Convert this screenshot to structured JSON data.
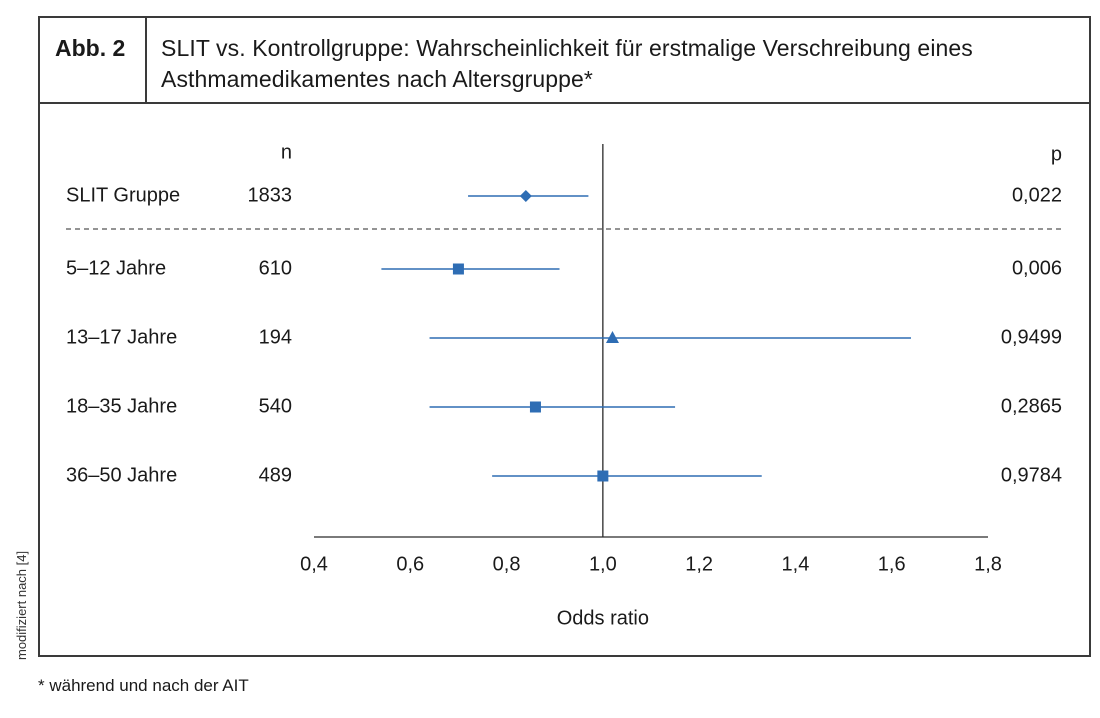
{
  "figure": {
    "label": "Abb. 2",
    "title": "SLIT vs. Kontrollgruppe: Wahrscheinlichkeit für erstmalige Verschreibung eines Asthmamedikamentes nach Altersgruppe*",
    "side_note": "modifiziert nach [4]",
    "footnote": "* während und nach der AIT"
  },
  "chart_data": {
    "type": "scatter",
    "subtype": "forest-plot",
    "xlabel": "Odds ratio",
    "xlim": [
      0.4,
      1.8
    ],
    "xticks": [
      0.4,
      0.6,
      0.8,
      1.0,
      1.2,
      1.4,
      1.6,
      1.8
    ],
    "xtick_labels": [
      "0,4",
      "0,6",
      "0,8",
      "1,0",
      "1,2",
      "1,4",
      "1,6",
      "1,8"
    ],
    "reference_line": 1.0,
    "column_headers": {
      "n": "n",
      "p": "p"
    },
    "accent_color": "#2e6db4",
    "rows": [
      {
        "label": "SLIT Gruppe",
        "n": "1833",
        "or": 0.84,
        "ci": [
          0.72,
          0.97
        ],
        "p": "0,022",
        "marker": "diamond",
        "separator_after": true
      },
      {
        "label": "5–12 Jahre",
        "n": "610",
        "or": 0.7,
        "ci": [
          0.54,
          0.91
        ],
        "p": "0,006",
        "marker": "square"
      },
      {
        "label": "13–17 Jahre",
        "n": "194",
        "or": 1.02,
        "ci": [
          0.64,
          1.64
        ],
        "p": "0,9499",
        "marker": "triangle"
      },
      {
        "label": "18–35 Jahre",
        "n": "540",
        "or": 0.86,
        "ci": [
          0.64,
          1.15
        ],
        "p": "0,2865",
        "marker": "square"
      },
      {
        "label": "36–50 Jahre",
        "n": "489",
        "or": 1.0,
        "ci": [
          0.77,
          1.33
        ],
        "p": "0,9784",
        "marker": "square"
      }
    ]
  }
}
